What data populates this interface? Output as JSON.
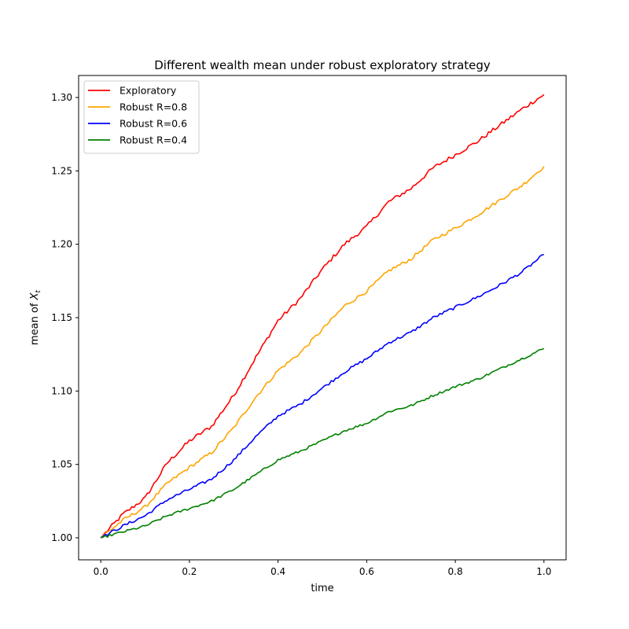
{
  "chart_data": {
    "type": "line",
    "title": "Different wealth mean under robust exploratory strategy",
    "xlabel": "time",
    "ylabel_prefix": "mean of ",
    "ylabel_var": "X",
    "ylabel_sub": "t",
    "xlim": [
      -0.05,
      1.05
    ],
    "ylim": [
      0.985,
      1.315
    ],
    "xticks": [
      0.0,
      0.2,
      0.4,
      0.6,
      0.8,
      1.0
    ],
    "xtick_labels": [
      "0.0",
      "0.2",
      "0.4",
      "0.6",
      "0.8",
      "1.0"
    ],
    "yticks": [
      1.0,
      1.05,
      1.1,
      1.15,
      1.2,
      1.25,
      1.3
    ],
    "ytick_labels": [
      "1.00",
      "1.05",
      "1.10",
      "1.15",
      "1.20",
      "1.25",
      "1.30"
    ],
    "grid": false,
    "legend_position": "top-left",
    "x": [
      0.0,
      0.05,
      0.1,
      0.15,
      0.2,
      0.25,
      0.3,
      0.35,
      0.4,
      0.45,
      0.5,
      0.55,
      0.6,
      0.65,
      0.7,
      0.75,
      0.8,
      0.85,
      0.9,
      0.95,
      1.0
    ],
    "series": [
      {
        "name": "Exploratory",
        "color": "#ff0000",
        "values": [
          1.0,
          1.016,
          1.027,
          1.051,
          1.066,
          1.076,
          1.097,
          1.123,
          1.148,
          1.163,
          1.183,
          1.2,
          1.212,
          1.229,
          1.238,
          1.252,
          1.261,
          1.27,
          1.281,
          1.292,
          1.302
        ]
      },
      {
        "name": "Robust R=0.8",
        "color": "#ffa500",
        "values": [
          1.0,
          1.012,
          1.021,
          1.037,
          1.048,
          1.058,
          1.075,
          1.096,
          1.114,
          1.126,
          1.142,
          1.158,
          1.168,
          1.182,
          1.19,
          1.203,
          1.211,
          1.22,
          1.23,
          1.24,
          1.253
        ]
      },
      {
        "name": "Robust R=0.6",
        "color": "#0000ff",
        "values": [
          1.0,
          1.008,
          1.015,
          1.026,
          1.033,
          1.04,
          1.053,
          1.069,
          1.083,
          1.091,
          1.102,
          1.113,
          1.122,
          1.133,
          1.14,
          1.15,
          1.157,
          1.164,
          1.172,
          1.181,
          1.193
        ]
      },
      {
        "name": "Robust R=0.4",
        "color": "#008000",
        "values": [
          1.0,
          1.004,
          1.008,
          1.015,
          1.02,
          1.025,
          1.033,
          1.043,
          1.053,
          1.059,
          1.066,
          1.073,
          1.078,
          1.086,
          1.09,
          1.097,
          1.103,
          1.108,
          1.115,
          1.122,
          1.129
        ]
      }
    ]
  }
}
